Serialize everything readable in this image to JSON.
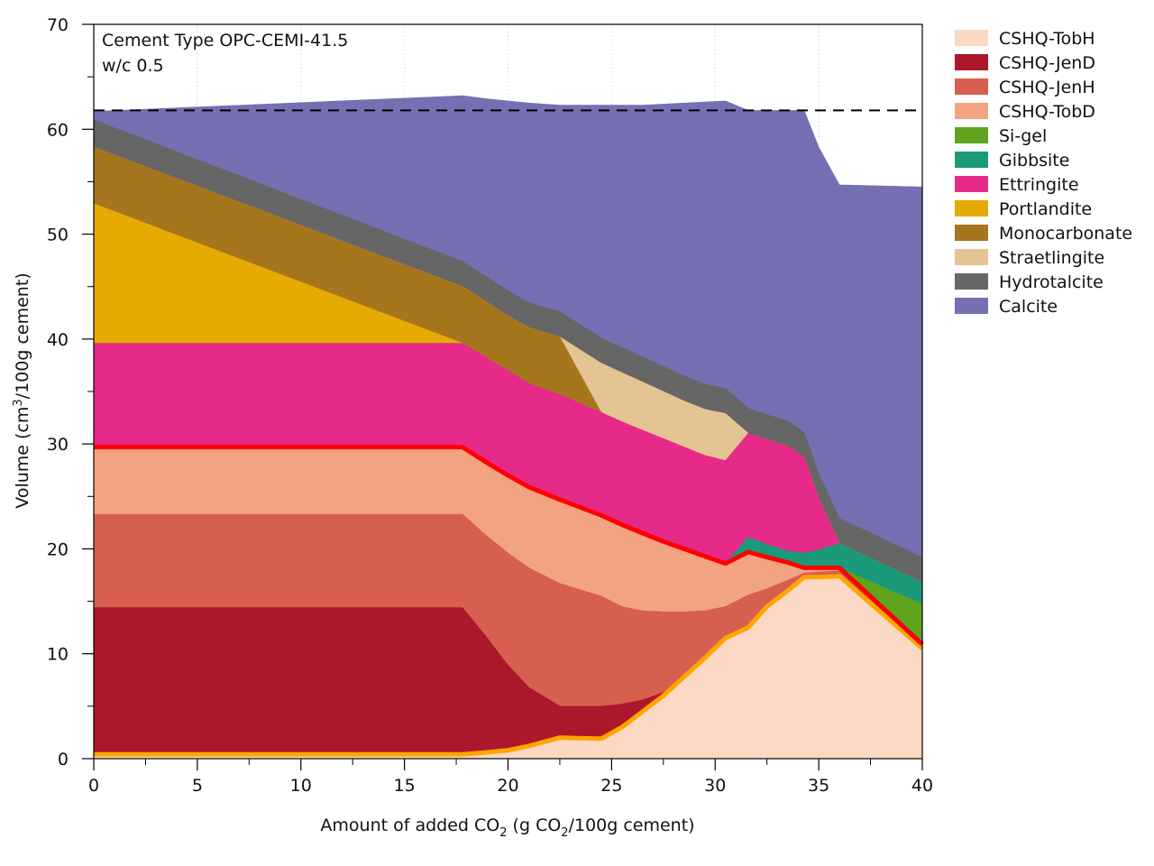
{
  "chart_data": {
    "type": "area",
    "annotations": [
      "Cement Type OPC-CEMI-41.5",
      "w/c 0.5"
    ],
    "xlabel": {
      "pre": "Amount of added CO",
      "sub1": "2",
      "mid": " (g CO",
      "sub2": "2",
      "post": "/100g cement)"
    },
    "ylabel": {
      "pre": "Volume (cm",
      "sup": "3",
      "post": "/100g cement)"
    },
    "xlim": [
      0,
      40
    ],
    "ylim": [
      0,
      70
    ],
    "xticks": [
      0,
      5,
      10,
      15,
      20,
      25,
      30,
      35,
      40
    ],
    "yticks": [
      0,
      10,
      20,
      30,
      40,
      50,
      60,
      70
    ],
    "grid": "dotted vertical",
    "legend_position": "right",
    "reference_line": {
      "y": 61.8,
      "style": "dashed",
      "color": "#000000"
    },
    "series": [
      {
        "name": "CSHQ-TobH",
        "color": "#fcd9c4",
        "x": [
          0,
          17.8,
          19,
          20,
          21,
          22.5,
          24.5,
          25.5,
          26.5,
          27.5,
          28.5,
          29.5,
          30.5,
          31.6,
          32.5,
          33.5,
          34.3,
          35,
          36,
          40
        ],
        "y": [
          0.4,
          0.4,
          0.6,
          0.8,
          1.2,
          2.0,
          1.9,
          3.0,
          4.5,
          6.0,
          7.8,
          9.6,
          11.5,
          12.5,
          14.5,
          16,
          17.3,
          17.3,
          17.4,
          10.5
        ]
      },
      {
        "name": "CSHQ-JenD",
        "color": "#ac182b",
        "x": [
          0,
          17.8,
          19,
          20,
          21,
          22.5,
          24.5,
          25.5,
          26.5,
          27.5,
          28.5,
          29.5,
          30.5,
          31.6,
          32.5,
          33.5,
          34.3,
          35,
          36,
          40
        ],
        "y": [
          14.4,
          14.4,
          11.5,
          8.9,
          6.8,
          5.0,
          5.0,
          5.2,
          5.6,
          6.3,
          7.8,
          9.6,
          11.5,
          12.5,
          14.5,
          16,
          17.3,
          17.3,
          17.4,
          10.5
        ]
      },
      {
        "name": "CSHQ-JenH",
        "color": "#d75f4f",
        "x": [
          0,
          17.8,
          19,
          20,
          21,
          22.5,
          24.5,
          25.5,
          26.5,
          27.5,
          28.5,
          29.5,
          30.5,
          31.6,
          32.5,
          33.5,
          34.3,
          35,
          36,
          40
        ],
        "y": [
          23.3,
          23.3,
          21.2,
          19.6,
          18.2,
          16.7,
          15.5,
          14.5,
          14.1,
          14.0,
          14.0,
          14.1,
          14.5,
          15.6,
          16.2,
          17.0,
          17.7,
          17.8,
          17.9,
          10.7
        ]
      },
      {
        "name": "CSHQ-TobD",
        "color": "#f2a482",
        "x": [
          0,
          17.8,
          19,
          20,
          21,
          22.5,
          24.5,
          25.5,
          26.5,
          27.5,
          28.5,
          29.5,
          30.5,
          31.6,
          32.5,
          33.5,
          34.3,
          35,
          36,
          40
        ],
        "y": [
          29.7,
          29.7,
          28.2,
          27.0,
          25.9,
          24.7,
          23.2,
          22.3,
          21.5,
          20.7,
          20.0,
          19.3,
          18.6,
          19.7,
          19.2,
          18.7,
          18.2,
          18.2,
          18.2,
          10.9
        ]
      },
      {
        "name": "Si-gel",
        "color": "#5fa41d",
        "x": [
          0,
          17.8,
          19,
          20,
          21,
          22.5,
          24.5,
          25.5,
          26.5,
          27.5,
          28.5,
          29.5,
          30.5,
          31.6,
          32.5,
          33.5,
          34.3,
          35,
          36,
          40
        ],
        "y": [
          29.7,
          29.7,
          28.2,
          27.0,
          25.9,
          24.7,
          23.2,
          22.3,
          21.5,
          20.7,
          20.0,
          19.3,
          18.6,
          19.7,
          19.2,
          18.7,
          18.2,
          18.2,
          18.2,
          14.7
        ]
      },
      {
        "name": "Gibbsite",
        "color": "#1a9a7a",
        "x": [
          0,
          17.8,
          19,
          20,
          21,
          22.5,
          24.5,
          25.5,
          26.5,
          27.5,
          28.5,
          29.5,
          30.5,
          31.6,
          32.5,
          33.5,
          34.3,
          35,
          36,
          40
        ],
        "y": [
          29.7,
          29.7,
          28.2,
          27.0,
          25.9,
          24.7,
          23.2,
          22.3,
          21.5,
          20.7,
          20.0,
          19.3,
          18.6,
          21.1,
          20.4,
          19.8,
          19.6,
          19.9,
          20.5,
          16.8
        ]
      },
      {
        "name": "Ettringite",
        "color": "#e62a89",
        "x": [
          0,
          17.8,
          19,
          20,
          21,
          22.5,
          24.5,
          25.5,
          26.5,
          27.5,
          28.5,
          29.5,
          30.5,
          31.6,
          32.5,
          33.5,
          34.3,
          35,
          36,
          40
        ],
        "y": [
          39.6,
          39.6,
          38.2,
          37.0,
          35.8,
          34.7,
          33.0,
          32.1,
          31.3,
          30.5,
          29.7,
          28.9,
          28.4,
          31.0,
          30.4,
          29.8,
          28.7,
          24.8,
          20.5,
          16.8
        ]
      },
      {
        "name": "Portlandite",
        "color": "#e6ab03",
        "x": [
          0,
          17.8,
          19,
          20,
          21,
          22.5,
          24.5,
          25.5,
          26.5,
          27.5,
          28.5,
          29.5,
          30.5,
          31.6,
          32.5,
          33.5,
          34.3,
          35,
          36,
          40
        ],
        "y": [
          52.9,
          39.6,
          38.2,
          37.0,
          35.8,
          34.7,
          33.0,
          32.1,
          31.3,
          30.5,
          29.7,
          28.9,
          28.4,
          31.0,
          30.4,
          29.8,
          28.7,
          24.8,
          20.5,
          16.8
        ]
      },
      {
        "name": "Monocarbonate",
        "color": "#a6761d",
        "x": [
          0,
          17.8,
          19,
          20,
          21,
          22.5,
          24.5,
          25.5,
          26.5,
          27.5,
          28.5,
          29.5,
          30.5,
          31.6,
          32.5,
          33.5,
          34.3,
          35,
          36,
          40
        ],
        "y": [
          58.3,
          45.0,
          43.5,
          42.2,
          41.1,
          40.2,
          33.0,
          32.1,
          31.3,
          30.5,
          29.7,
          28.9,
          28.4,
          31.0,
          30.4,
          29.8,
          28.7,
          24.8,
          20.5,
          16.8
        ]
      },
      {
        "name": "Straetlingite",
        "color": "#e5c494",
        "x": [
          0,
          17.8,
          19,
          20,
          21,
          22.5,
          24.5,
          25.5,
          26.5,
          27.5,
          28.5,
          29.5,
          30.5,
          31.6,
          32.5,
          33.5,
          34.3,
          35,
          36,
          40
        ],
        "y": [
          58.3,
          45.0,
          43.5,
          42.2,
          41.1,
          40.2,
          37.7,
          36.8,
          35.9,
          35.0,
          34.1,
          33.3,
          32.9,
          31.0,
          30.4,
          29.8,
          28.7,
          24.8,
          20.5,
          16.8
        ]
      },
      {
        "name": "Hydrotalcite",
        "color": "#666666",
        "x": [
          0,
          17.8,
          19,
          20,
          21,
          22.5,
          24.5,
          25.5,
          26.5,
          27.5,
          28.5,
          29.5,
          30.5,
          31.6,
          32.5,
          33.5,
          34.3,
          35,
          36,
          40
        ],
        "y": [
          60.9,
          47.4,
          45.9,
          44.6,
          43.5,
          42.6,
          40.1,
          39.2,
          38.3,
          37.4,
          36.5,
          35.7,
          35.3,
          33.4,
          32.8,
          32.2,
          31.1,
          27.2,
          22.9,
          19.2
        ]
      },
      {
        "name": "Calcite",
        "color": "#7570b3",
        "x": [
          0,
          17.8,
          19,
          20,
          21,
          22.5,
          24.5,
          25.5,
          26.5,
          27.5,
          28.5,
          29.5,
          30.5,
          31.6,
          32.5,
          33.5,
          34.3,
          35,
          36,
          40
        ],
        "y": [
          61.7,
          63.2,
          62.9,
          62.7,
          62.5,
          62.3,
          62.3,
          62.3,
          62.3,
          62.4,
          62.5,
          62.6,
          62.7,
          61.8,
          61.8,
          61.8,
          61.8,
          58.3,
          54.7,
          54.5
        ]
      }
    ],
    "highlight_lines": [
      {
        "name": "CSHQ-TobH",
        "color": "#ffa500"
      },
      {
        "name": "CSHQ-TobD",
        "color": "#ff0000"
      }
    ]
  }
}
